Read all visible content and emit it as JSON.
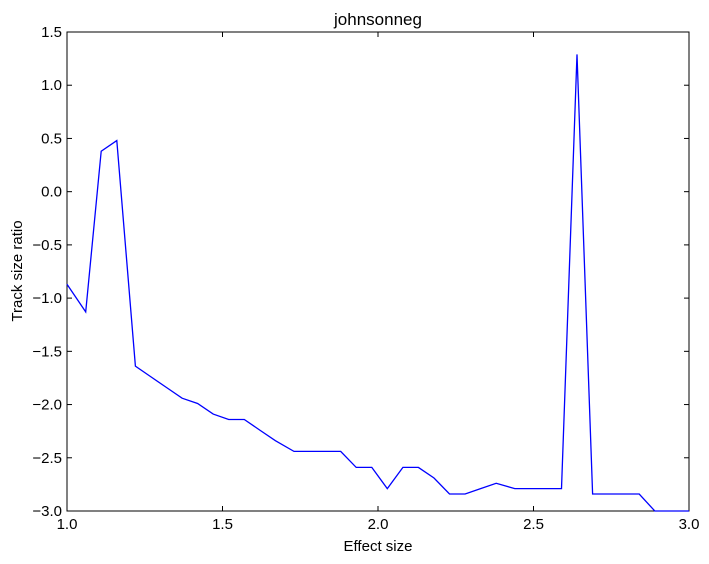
{
  "chart_data": {
    "type": "line",
    "title": "johnsonneg",
    "xlabel": "Effect size",
    "ylabel": "Track size ratio",
    "xlim": [
      1.0,
      3.0
    ],
    "ylim": [
      -3.0,
      1.5
    ],
    "x_ticks": [
      "1.0",
      "1.5",
      "2.0",
      "2.5",
      "3.0"
    ],
    "y_ticks": [
      "1.5",
      "1.0",
      "0.5",
      "0.0",
      "−0.5",
      "−1.0",
      "−1.5",
      "−2.0",
      "−2.5",
      "−3.0"
    ],
    "grid": false,
    "color": "#0000ff",
    "series": [
      {
        "x": [
          1.0,
          1.06,
          1.11,
          1.16,
          1.22,
          1.27,
          1.32,
          1.37,
          1.42,
          1.47,
          1.52,
          1.57,
          1.62,
          1.67,
          1.73,
          1.78,
          1.83,
          1.88,
          1.93,
          1.98,
          2.03,
          2.08,
          2.13,
          2.18,
          2.23,
          2.28,
          2.33,
          2.38,
          2.44,
          2.49,
          2.54,
          2.59,
          2.64,
          2.69,
          2.74,
          2.79,
          2.84,
          2.89,
          2.94,
          3.0
        ],
        "y": [
          -0.87,
          -1.13,
          0.38,
          0.48,
          -1.64,
          -1.74,
          -1.84,
          -1.94,
          -1.99,
          -2.09,
          -2.14,
          -2.14,
          -2.24,
          -2.34,
          -2.44,
          -2.44,
          -2.44,
          -2.44,
          -2.59,
          -2.59,
          -2.79,
          -2.59,
          -2.59,
          -2.69,
          -2.84,
          -2.84,
          -2.79,
          -2.74,
          -2.79,
          -2.79,
          -2.79,
          -2.79,
          1.29,
          -2.84,
          -2.84,
          -2.84,
          -2.84,
          -3.0,
          -3.0,
          -3.0
        ]
      }
    ]
  }
}
